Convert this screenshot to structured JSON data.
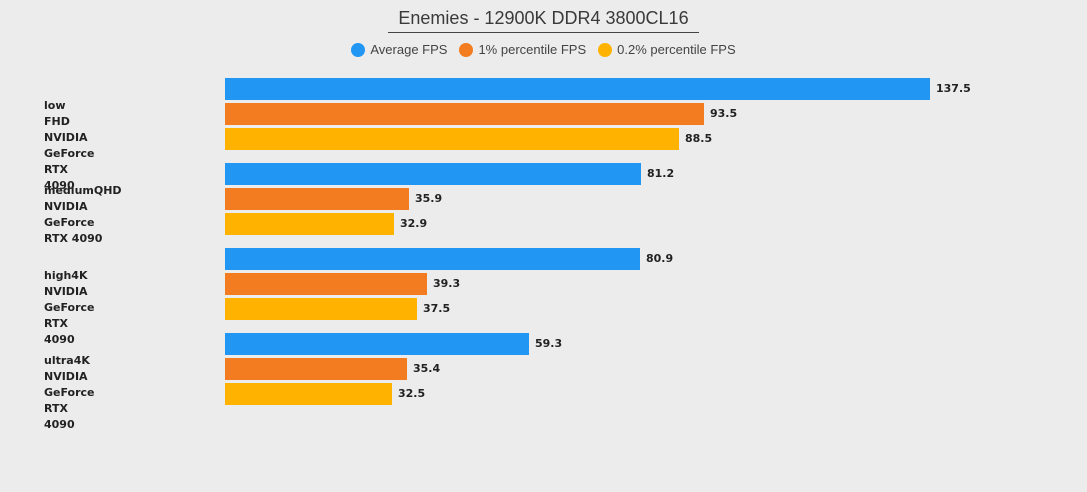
{
  "chart_data": {
    "type": "bar",
    "orientation": "horizontal",
    "title": "Enemies - 12900K DDR4 3800CL16",
    "categories": [
      {
        "line1": "low FHD",
        "line2": "NVIDIA GeForce RTX 4090"
      },
      {
        "line1": "mediumQHD",
        "line2": "NVIDIA GeForce RTX 4090"
      },
      {
        "line1": "high4K",
        "line2": "NVIDIA GeForce RTX 4090"
      },
      {
        "line1": "ultra4K",
        "line2": "NVIDIA GeForce RTX 4090"
      }
    ],
    "series": [
      {
        "name": "Average FPS",
        "color": "#2196f3",
        "values": [
          137.5,
          81.2,
          80.9,
          59.3
        ]
      },
      {
        "name": "1% percentile FPS",
        "color": "#f47c20",
        "values": [
          93.5,
          35.9,
          39.3,
          35.4
        ]
      },
      {
        "name": "0.2% percentile FPS",
        "color": "#ffb300",
        "values": [
          88.5,
          32.9,
          37.5,
          32.5
        ]
      }
    ],
    "xlim": [
      0,
      137.5
    ],
    "grid": false,
    "legend_position": "top-center"
  }
}
